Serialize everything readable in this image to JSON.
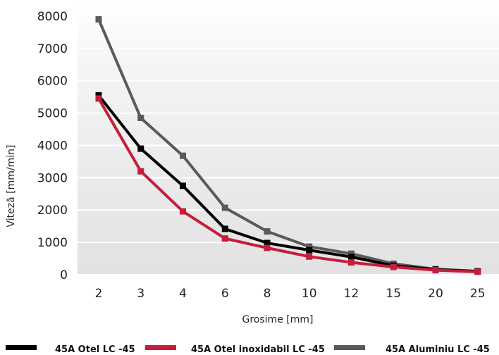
{
  "chart_data": {
    "type": "line",
    "title": "",
    "xlabel": "Grosime [mm]",
    "ylabel": "Viteză [mm/min]",
    "x": [
      "2",
      "3",
      "4",
      "6",
      "8",
      "10",
      "12",
      "15",
      "20",
      "25"
    ],
    "yticks": [
      "0",
      "1000",
      "2000",
      "3000",
      "4000",
      "5000",
      "6000",
      "7000",
      "8000"
    ],
    "ylim": [
      0,
      8500
    ],
    "grid": true,
    "legend_position": "bottom",
    "series": [
      {
        "name": "45A Otel LC -45",
        "color": "#000000",
        "values": [
          5550,
          3900,
          2750,
          1420,
          980,
          760,
          550,
          280,
          160,
          100
        ]
      },
      {
        "name": "45A Otel inoxidabil LC -45",
        "color": "#c41e3a",
        "values": [
          5450,
          3200,
          1960,
          1120,
          830,
          560,
          380,
          240,
          140,
          90
        ]
      },
      {
        "name": "45A Aluminiu LC -45",
        "color": "#5a5a5a",
        "values": [
          7900,
          4850,
          3680,
          2070,
          1340,
          870,
          650,
          340,
          170,
          110
        ]
      }
    ]
  }
}
